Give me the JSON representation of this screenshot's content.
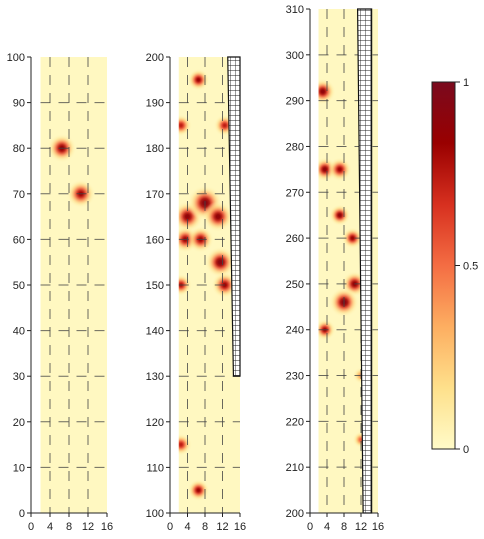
{
  "chart_data": {
    "type": "heatmap",
    "panels": [
      {
        "name": "panel-1",
        "xlim": [
          0,
          16
        ],
        "xticks": [
          0,
          4,
          8,
          12,
          16
        ],
        "ylim": [
          0,
          100
        ],
        "yticks": [
          0,
          10,
          20,
          30,
          40,
          50,
          60,
          70,
          80,
          90,
          100
        ],
        "data_xrange": [
          2,
          16
        ],
        "data_yrange": [
          0,
          100
        ],
        "hotspots": [
          {
            "x": 6.5,
            "y": 80,
            "intensity": 0.9,
            "radius": 3
          },
          {
            "x": 10.5,
            "y": 70,
            "intensity": 0.85,
            "radius": 3
          }
        ],
        "grid_x": [
          4,
          8,
          12
        ],
        "grid_y": [
          10,
          20,
          30,
          40,
          50,
          60,
          70,
          80,
          90
        ]
      },
      {
        "name": "panel-2",
        "xlim": [
          0,
          16
        ],
        "xticks": [
          0,
          4,
          8,
          12,
          16
        ],
        "ylim": [
          100,
          200
        ],
        "yticks": [
          100,
          110,
          120,
          130,
          140,
          150,
          160,
          170,
          180,
          190,
          200
        ],
        "data_xrange": [
          2,
          16
        ],
        "data_yrange": [
          100,
          200
        ],
        "hotspots": [
          {
            "x": 6.5,
            "y": 195,
            "intensity": 0.85,
            "radius": 2.5
          },
          {
            "x": 2.5,
            "y": 185,
            "intensity": 0.75,
            "radius": 2.5
          },
          {
            "x": 12.5,
            "y": 185,
            "intensity": 0.75,
            "radius": 2.5
          },
          {
            "x": 4,
            "y": 165,
            "intensity": 0.9,
            "radius": 3.5
          },
          {
            "x": 8,
            "y": 168,
            "intensity": 0.95,
            "radius": 4
          },
          {
            "x": 11,
            "y": 165,
            "intensity": 0.9,
            "radius": 3.5
          },
          {
            "x": 3.5,
            "y": 160,
            "intensity": 0.85,
            "radius": 3
          },
          {
            "x": 7,
            "y": 160,
            "intensity": 0.85,
            "radius": 3
          },
          {
            "x": 11.5,
            "y": 155,
            "intensity": 0.95,
            "radius": 3.5
          },
          {
            "x": 12.5,
            "y": 150,
            "intensity": 0.85,
            "radius": 3
          },
          {
            "x": 2.5,
            "y": 150,
            "intensity": 0.8,
            "radius": 2.5
          },
          {
            "x": 2.5,
            "y": 115,
            "intensity": 0.75,
            "radius": 2.5
          },
          {
            "x": 6.5,
            "y": 105,
            "intensity": 0.85,
            "radius": 2.5
          }
        ],
        "grid_x": [
          4,
          8,
          12
        ],
        "grid_y": [
          110,
          120,
          130,
          140,
          150,
          160,
          170,
          180,
          190
        ],
        "hatch_band": {
          "x_top": [
            13.2,
            16
          ],
          "x_bottom": [
            14.5,
            16
          ],
          "y_from": 130,
          "y_to": 200
        }
      },
      {
        "name": "panel-3",
        "xlim": [
          0,
          16
        ],
        "xticks": [
          0,
          4,
          8,
          12,
          16
        ],
        "ylim": [
          200,
          310
        ],
        "yticks": [
          200,
          210,
          220,
          230,
          240,
          250,
          260,
          270,
          280,
          290,
          300,
          310
        ],
        "data_xrange": [
          2,
          16
        ],
        "data_yrange": [
          200,
          310
        ],
        "hotspots": [
          {
            "x": 3,
            "y": 292,
            "intensity": 0.9,
            "radius": 3
          },
          {
            "x": 3.5,
            "y": 275,
            "intensity": 0.9,
            "radius": 2.8
          },
          {
            "x": 7,
            "y": 275,
            "intensity": 0.85,
            "radius": 2.8
          },
          {
            "x": 7,
            "y": 265,
            "intensity": 0.9,
            "radius": 2.5
          },
          {
            "x": 10,
            "y": 260,
            "intensity": 0.85,
            "radius": 2.5
          },
          {
            "x": 10.5,
            "y": 250,
            "intensity": 0.9,
            "radius": 3
          },
          {
            "x": 8,
            "y": 246,
            "intensity": 0.95,
            "radius": 3.5
          },
          {
            "x": 3.5,
            "y": 240,
            "intensity": 0.85,
            "radius": 2.5
          },
          {
            "x": 12,
            "y": 230,
            "intensity": 0.4,
            "radius": 2
          },
          {
            "x": 12,
            "y": 216,
            "intensity": 0.55,
            "radius": 2
          }
        ],
        "grid_x": [
          4,
          8,
          12
        ],
        "grid_y": [
          210,
          220,
          230,
          240,
          250,
          260,
          270,
          280,
          290,
          300
        ],
        "hatch_band": {
          "x_top": [
            11.2,
            14.5
          ],
          "x_bottom": [
            12.5,
            14.5
          ],
          "y_from": 200,
          "y_to": 310
        }
      }
    ],
    "colorbar": {
      "min": 0,
      "max": 1,
      "tick_values": [
        0,
        0.5,
        1
      ],
      "tick_labels": [
        "0",
        "0.5",
        "1"
      ],
      "colors": [
        "#fffbc8",
        "#fee08b",
        "#fdae61",
        "#f46d43",
        "#d7301f",
        "#990000",
        "#7a0a1e"
      ]
    },
    "grid": true
  }
}
